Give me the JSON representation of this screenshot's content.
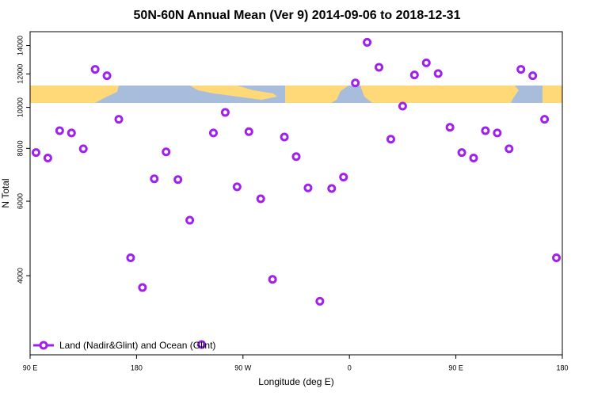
{
  "chart_data": {
    "type": "scatter",
    "title": "50N-60N Annual Mean (Ver 9)   2014-09-06 to 2018-12-31",
    "x_label": "Longitude (deg E)",
    "y_label": "N Total",
    "xlim": [
      90,
      540
    ],
    "xticks": [
      {
        "value": 90,
        "label": "90 E"
      },
      {
        "value": 180,
        "label": "180"
      },
      {
        "value": 270,
        "label": "90 W"
      },
      {
        "value": 360,
        "label": "0"
      },
      {
        "value": 450,
        "label": "90 E"
      },
      {
        "value": 540,
        "label": "180"
      }
    ],
    "ylim": [
      2600,
      15100
    ],
    "yticks": [
      4000,
      6000,
      8000,
      10000,
      12000,
      14000
    ],
    "ylog": true,
    "legend": "bottom-left",
    "series": [
      {
        "name": "Land (Nadir&Glint) and Ocean (Glint)",
        "color": "#a020f0",
        "x": [
          95,
          105,
          115,
          125,
          135,
          145,
          155,
          165,
          175,
          185,
          195,
          205,
          215,
          225,
          235,
          245,
          255,
          265,
          275,
          285,
          295,
          305,
          315,
          325,
          335,
          345,
          355,
          365,
          375,
          385,
          395,
          405,
          415,
          425,
          435,
          445,
          455,
          465,
          475,
          485,
          495,
          505,
          515,
          525,
          535
        ],
        "values": [
          7820,
          7590,
          8810,
          8700,
          7980,
          12300,
          11880,
          9370,
          4410,
          3750,
          6780,
          7850,
          6750,
          5410,
          2750,
          8700,
          9730,
          6490,
          8760,
          6080,
          3920,
          8510,
          7650,
          6450,
          3480,
          6430,
          6840,
          11420,
          14250,
          12440,
          8410,
          10070,
          11930,
          12740,
          12020,
          8970,
          7820,
          7590,
          8810,
          8700,
          7980,
          12300,
          11880,
          9370,
          4410
        ]
      }
    ]
  }
}
